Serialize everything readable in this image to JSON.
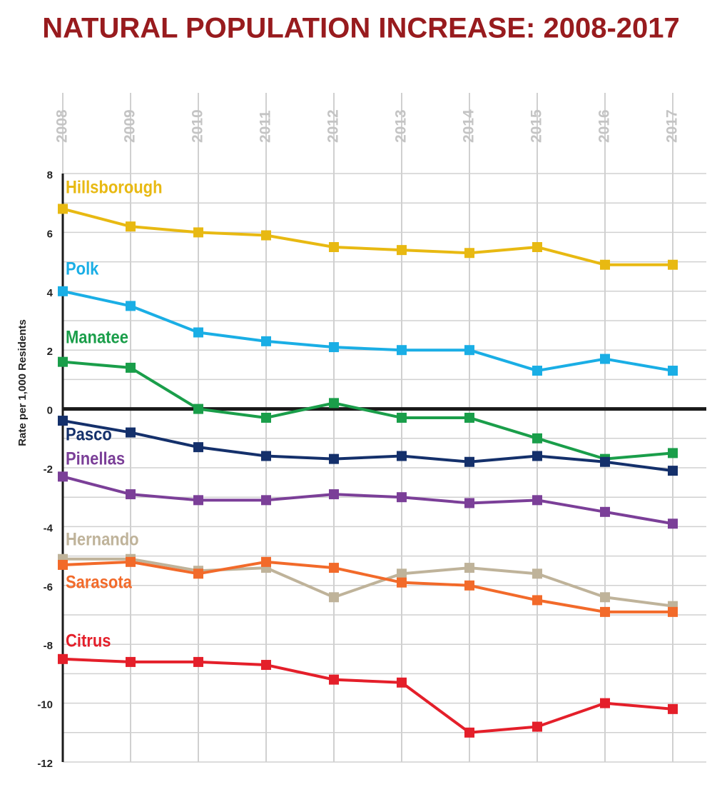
{
  "chart_data": {
    "type": "line",
    "title": "NATURAL POPULATION INCREASE: 2008-2017",
    "y_label": "Rate per 1,000 Residents",
    "categories": [
      "2008",
      "2009",
      "2010",
      "2011",
      "2012",
      "2013",
      "2014",
      "2015",
      "2016",
      "2017"
    ],
    "ylim": [
      -12,
      8
    ],
    "yticks": [
      -12,
      -10,
      -8,
      -6,
      -4,
      -2,
      0,
      2,
      4,
      6,
      8
    ],
    "y_minor_ticks": [
      -11,
      -9,
      -7,
      -5,
      -3,
      -1,
      1,
      3,
      5,
      7
    ],
    "grid": true,
    "series": [
      {
        "name": "Hillsborough",
        "color": "#e8b912",
        "values": [
          6.8,
          6.2,
          6.0,
          5.9,
          5.5,
          5.4,
          5.3,
          5.5,
          4.9,
          4.9
        ]
      },
      {
        "name": "Polk",
        "color": "#1aaee5",
        "values": [
          4.0,
          3.5,
          2.6,
          2.3,
          2.1,
          2.0,
          2.0,
          1.3,
          1.7,
          1.3
        ]
      },
      {
        "name": "Manatee",
        "color": "#1a9e4a",
        "values": [
          1.6,
          1.4,
          0,
          -0.3,
          0.2,
          -0.3,
          -0.3,
          -1.0,
          -1.7,
          -1.5
        ]
      },
      {
        "name": "Pasco",
        "color": "#14306b",
        "values": [
          -0.4,
          -0.8,
          -1.3,
          -1.6,
          -1.7,
          -1.6,
          -1.8,
          -1.6,
          -1.8,
          -2.1
        ]
      },
      {
        "name": "Pinellas",
        "color": "#7b3f98",
        "values": [
          -2.3,
          -2.9,
          -3.1,
          -3.1,
          -2.9,
          -3.0,
          -3.2,
          -3.1,
          -3.5,
          -3.9
        ]
      },
      {
        "name": "Hernando",
        "color": "#bfb39a",
        "values": [
          -5.1,
          -5.1,
          -5.5,
          -5.4,
          -6.4,
          -5.6,
          -5.4,
          -5.6,
          -6.4,
          -6.7
        ]
      },
      {
        "name": "Sarasota",
        "color": "#f26a2a",
        "values": [
          -5.3,
          -5.2,
          -5.6,
          -5.2,
          -5.4,
          -5.9,
          -6.0,
          -6.5,
          -6.9,
          -6.9
        ]
      },
      {
        "name": "Citrus",
        "color": "#e41f2a",
        "values": [
          -8.5,
          -8.6,
          -8.6,
          -8.7,
          -9.2,
          -9.3,
          -11.0,
          -10.8,
          -10.0,
          -10.2
        ]
      }
    ]
  }
}
